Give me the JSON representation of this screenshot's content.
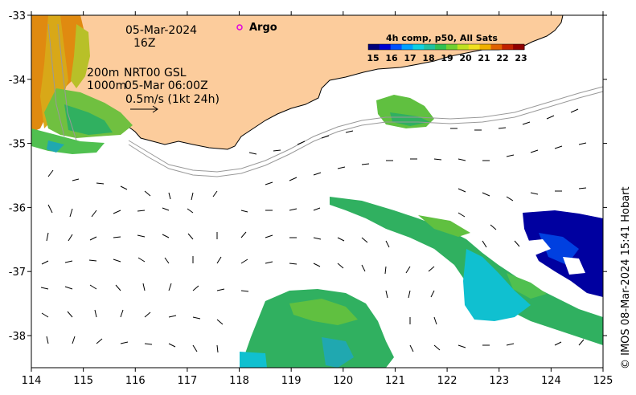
{
  "map": {
    "annotations": {
      "date": "05-Mar-2024",
      "hour": "16Z",
      "contour_line1": "200m",
      "contour_line2": "1000m",
      "source": "NRT00 GSL",
      "source_time": "05-Mar 06:00Z",
      "scale_text": "0.5m/s (1kt 24h)"
    },
    "legend": {
      "argo_label": "Argo"
    },
    "colorbar": {
      "title": "4h comp, p50, All Sats",
      "ticks": [
        "15",
        "16",
        "17",
        "18",
        "19",
        "20",
        "21",
        "22",
        "23"
      ],
      "colors": [
        "#00007a",
        "#0000d0",
        "#0050ff",
        "#00a0ff",
        "#10d0e0",
        "#20c0a0",
        "#30c050",
        "#70d030",
        "#c0e020",
        "#f0e020",
        "#f0b000",
        "#e06000",
        "#c02000",
        "#900000"
      ]
    },
    "x_axis_ticks": [
      "114",
      "115",
      "116",
      "117",
      "118",
      "119",
      "120",
      "121",
      "122",
      "123",
      "124",
      "125"
    ],
    "y_axis_ticks": [
      "-33",
      "-34",
      "-35",
      "-36",
      "-37",
      "-38"
    ],
    "credit": "© IMOS 08-Mar-2024 15:41 Hobart",
    "colors": {
      "land": "#fccc9c",
      "coast": "#000000",
      "ocean": "#ffffff"
    }
  }
}
